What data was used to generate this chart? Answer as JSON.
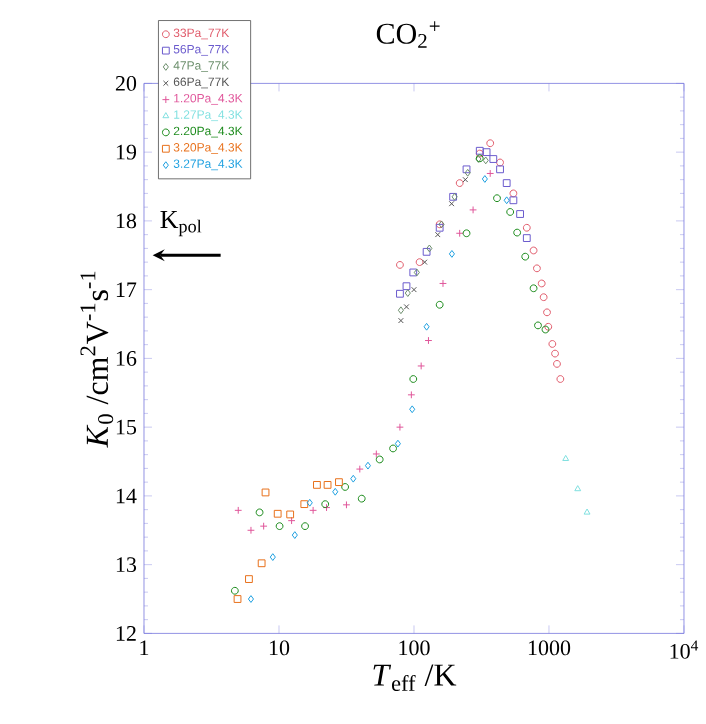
{
  "chart_data": {
    "type": "scatter",
    "title": "CO$_{2}$$^{+}$",
    "xlabel": "*T*$_{eff}$ /K",
    "ylabel": "*K*$_{0}$ /cm$^{2}$V$^{-1}$s$^{-1}$",
    "log": "x",
    "xlim": [
      1,
      10000
    ],
    "ylim": [
      12,
      20
    ],
    "xticks": [
      1,
      10,
      100,
      1000,
      {
        "value": 10000,
        "label": "10$^{4}$"
      }
    ],
    "yticks": [
      12,
      13,
      14,
      15,
      16,
      17,
      18,
      19,
      20
    ],
    "legend": "top left",
    "annotations": [
      "K$_{pol}$"
    ],
    "series": [
      {
        "name": "33Pa_77K",
        "color": "#e05a6a",
        "marker": "circle",
        "x": [
          78.7,
          110,
          155,
          218,
          307,
          367,
          434,
          545,
          685,
          769,
          814,
          883,
          913,
          967,
          988,
          1059,
          1109,
          1146,
          1214
        ],
        "values": [
          17.36,
          17.4,
          17.95,
          18.55,
          18.98,
          19.13,
          18.85,
          18.4,
          17.9,
          17.57,
          17.31,
          17.09,
          16.89,
          16.67,
          16.46,
          16.21,
          16.07,
          15.92,
          15.7
        ]
      },
      {
        "name": "56Pa_77K",
        "color": "#6a5acd",
        "marker": "square",
        "x": [
          78.7,
          88,
          98.8,
          124,
          155,
          195,
          245,
          307,
          345,
          387,
          434,
          486,
          545,
          611,
          685
        ],
        "values": [
          16.94,
          17.05,
          17.25,
          17.55,
          17.9,
          18.35,
          18.75,
          19.02,
          19.0,
          18.9,
          18.75,
          18.55,
          18.3,
          18.1,
          17.75
        ]
      },
      {
        "name": "47Pa_77K",
        "color": "#6b8e6b",
        "marker": "diamond",
        "x": [
          80,
          90,
          105,
          130,
          160,
          200,
          250,
          300,
          340
        ],
        "values": [
          16.7,
          16.95,
          17.25,
          17.6,
          17.95,
          18.35,
          18.7,
          18.9,
          18.88
        ]
      },
      {
        "name": "66Pa_77K",
        "color": "#555555",
        "marker": "cross",
        "x": [
          80,
          88,
          100,
          120,
          150,
          190,
          240
        ],
        "values": [
          16.55,
          16.75,
          17.0,
          17.4,
          17.8,
          18.25,
          18.6
        ]
      },
      {
        "name": "1.20Pa_4.3K",
        "color": "#e0559a",
        "marker": "plus",
        "x": [
          4.99,
          6.2,
          7.7,
          12.4,
          17.9,
          22.5,
          31.6,
          39.7,
          52.6,
          78.7,
          95.6,
          113,
          128,
          164,
          218,
          274,
          367
        ],
        "values": [
          13.79,
          13.5,
          13.56,
          13.64,
          13.79,
          13.83,
          13.87,
          14.39,
          14.61,
          15.0,
          15.47,
          15.89,
          16.26,
          17.09,
          17.82,
          18.16,
          18.69
        ]
      },
      {
        "name": "1.27Pa_4.3K",
        "color": "#7fe0e0",
        "marker": "triangle",
        "x": [
          1330,
          1633,
          1915
        ],
        "values": [
          14.54,
          14.1,
          13.76
        ]
      },
      {
        "name": "2.20Pa_4.3K",
        "color": "#1a8a1a",
        "marker": "circle",
        "x": [
          4.71,
          7.18,
          10.1,
          15.6,
          22,
          30.9,
          41,
          55.7,
          70,
          98.8,
          155,
          245,
          307,
          412,
          516,
          581,
          667,
          769,
          829,
          942
        ],
        "values": [
          12.62,
          13.76,
          13.56,
          13.56,
          13.88,
          14.13,
          13.96,
          14.53,
          14.69,
          15.7,
          16.78,
          17.82,
          18.91,
          18.33,
          18.13,
          17.83,
          17.48,
          17.02,
          16.48,
          16.42
        ]
      },
      {
        "name": "3.20Pa_4.3K",
        "color": "#e8701a",
        "marker": "square",
        "x": [
          4.93,
          5.99,
          7.44,
          7.95,
          9.78,
          12.1,
          15.4,
          19.1,
          22.9,
          27.8
        ],
        "values": [
          12.5,
          12.79,
          13.02,
          14.05,
          13.74,
          13.73,
          13.88,
          14.16,
          14.16,
          14.2
        ]
      },
      {
        "name": "3.27Pa_4.3K",
        "color": "#1ea0e0",
        "marker": "diamond",
        "x": [
          6.2,
          9.0,
          13.1,
          16.9,
          26.1,
          35.5,
          45.6,
          76,
          97,
          124,
          191,
          335,
          486
        ],
        "values": [
          12.5,
          13.11,
          13.43,
          13.9,
          14.06,
          14.25,
          14.44,
          14.76,
          15.26,
          16.46,
          17.52,
          18.61,
          18.3
        ]
      }
    ]
  }
}
